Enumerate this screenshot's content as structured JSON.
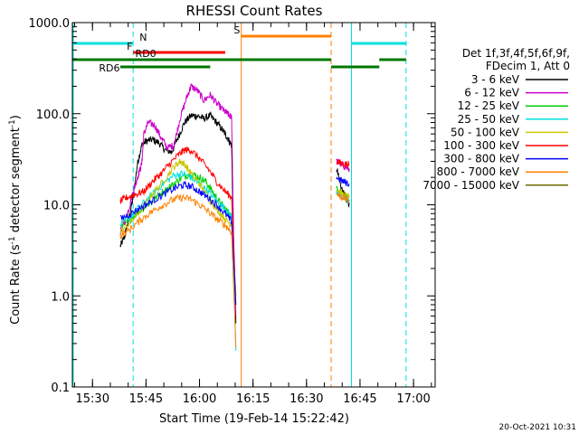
{
  "chart_data": {
    "type": "line",
    "title": "RHESSI Count Rates",
    "xlabel": "Start Time (19-Feb-14 15:22:42)",
    "ylabel_main": "Count Rate (s",
    "ylabel_sup": "-1",
    "ylabel_tail": " detector segment",
    "ylabel_sup2": "-1",
    "ylabel_close": ")",
    "xlim_min": [
      15.406,
      17.101
    ],
    "ylim": [
      0.1,
      1000
    ],
    "yscale": "log",
    "x_ticks": [
      {
        "min": 15.5,
        "label": "15:30"
      },
      {
        "min": 15.75,
        "label": "15:45"
      },
      {
        "min": 16.0,
        "label": "16:00"
      },
      {
        "min": 16.25,
        "label": "16:15"
      },
      {
        "min": 16.5,
        "label": "16:30"
      },
      {
        "min": 16.75,
        "label": "16:45"
      },
      {
        "min": 17.0,
        "label": "17:00"
      }
    ],
    "y_ticks": [
      {
        "v": 0.1,
        "label": "0.1"
      },
      {
        "v": 1,
        "label": "1.0"
      },
      {
        "v": 10,
        "label": "10.0"
      },
      {
        "v": 100,
        "label": "100.0"
      },
      {
        "v": 1000,
        "label": "1000.0"
      }
    ],
    "legend": {
      "placement": "right",
      "header1": "Det 1f,3f,4f,5f,6f,9f,",
      "header2": "FDecim 1, Att 0"
    },
    "series": [
      {
        "name": "3 - 6 keV",
        "color": "#000000",
        "x": [
          15.63,
          15.65,
          15.67,
          15.69,
          15.71,
          15.73,
          15.75,
          15.78,
          15.81,
          15.84,
          15.87,
          15.9,
          15.93,
          15.96,
          15.99,
          16.02,
          16.05,
          16.08,
          16.11,
          16.13,
          16.15,
          16.16,
          16.17
        ],
        "y": [
          3.5,
          4.5,
          7,
          12,
          28,
          45,
          50,
          52,
          48,
          40,
          38,
          55,
          80,
          95,
          95,
          88,
          95,
          80,
          65,
          55,
          45,
          3,
          0.5
        ],
        "x2": [
          16.64,
          16.66,
          16.68,
          16.7
        ],
        "y2": [
          25,
          16,
          12,
          10
        ]
      },
      {
        "name": "6 - 12 keV",
        "color": "#cc00cc",
        "x": [
          15.63,
          15.65,
          15.67,
          15.69,
          15.71,
          15.73,
          15.74,
          15.76,
          15.79,
          15.82,
          15.85,
          15.88,
          15.91,
          15.94,
          15.96,
          15.99,
          16.02,
          16.05,
          16.08,
          16.11,
          16.13,
          16.15,
          16.16,
          16.17
        ],
        "y": [
          5,
          6.5,
          9,
          14,
          20,
          28,
          60,
          80,
          75,
          55,
          42,
          45,
          90,
          150,
          200,
          180,
          140,
          160,
          130,
          110,
          100,
          90,
          4,
          0.6
        ],
        "x2": [
          16.64,
          16.66,
          16.68,
          16.7
        ],
        "y2": [
          30,
          28,
          26,
          25
        ]
      },
      {
        "name": "12 - 25 keV",
        "color": "#00cc00",
        "x": [
          15.63,
          15.68,
          15.73,
          15.78,
          15.83,
          15.88,
          15.92,
          15.96,
          16.0,
          16.03,
          16.06,
          16.09,
          16.12,
          16.15,
          16.17
        ],
        "y": [
          5.5,
          7,
          9,
          11,
          14,
          17,
          20,
          22,
          20,
          18,
          14,
          11,
          9,
          7.5,
          1
        ],
        "x2": [
          16.64,
          16.67,
          16.7
        ],
        "y2": [
          15,
          13,
          12
        ]
      },
      {
        "name": "25 - 50 keV",
        "color": "#00e0e0",
        "x": [
          15.63,
          15.68,
          15.73,
          15.78,
          15.83,
          15.88,
          15.92,
          15.96,
          16.0,
          16.04,
          16.08,
          16.12,
          16.15,
          16.17
        ],
        "y": [
          6,
          7.5,
          10,
          13,
          17,
          21,
          22,
          20,
          17,
          14,
          11,
          9,
          7.5,
          0.25
        ],
        "x2": [
          16.64,
          16.67,
          16.7
        ],
        "y2": [
          14,
          12,
          11
        ]
      },
      {
        "name": "50 - 100 keV",
        "color": "#c8c800",
        "x": [
          15.63,
          15.68,
          15.73,
          15.78,
          15.83,
          15.88,
          15.91,
          15.93,
          15.96,
          16.0,
          16.04,
          16.08,
          16.12,
          16.15,
          16.17
        ],
        "y": [
          5,
          6.5,
          9,
          13,
          18,
          26,
          30,
          28,
          22,
          17,
          12,
          9,
          7,
          6,
          1
        ],
        "x2": [
          16.64,
          16.67,
          16.7
        ],
        "y2": [
          15,
          13,
          12
        ]
      },
      {
        "name": "100 - 300 keV",
        "color": "#ff0000",
        "x": [
          15.63,
          15.66,
          15.7,
          15.74,
          15.78,
          15.82,
          15.86,
          15.9,
          15.93,
          15.96,
          16.0,
          16.04,
          16.08,
          16.12,
          16.15,
          16.17
        ],
        "y": [
          11,
          12,
          13,
          14,
          18,
          22,
          28,
          35,
          40,
          40,
          32,
          25,
          18,
          14,
          12,
          0.8
        ],
        "x2": [
          16.64,
          16.67,
          16.7
        ],
        "y2": [
          30,
          28,
          28
        ]
      },
      {
        "name": "300 - 800 keV",
        "color": "#0000ff",
        "x": [
          15.63,
          15.68,
          15.73,
          15.78,
          15.83,
          15.88,
          15.92,
          15.96,
          16.0,
          16.04,
          16.08,
          16.12,
          16.15,
          16.17
        ],
        "y": [
          7,
          8,
          9.5,
          11,
          13,
          15,
          16.5,
          16,
          14,
          12,
          10,
          8,
          6.5,
          0.8
        ],
        "x2": [
          16.64,
          16.67,
          16.7
        ],
        "y2": [
          20,
          18,
          17
        ]
      },
      {
        "name": "800 - 7000 keV",
        "color": "#ff8000",
        "x": [
          15.63,
          15.68,
          15.73,
          15.78,
          15.83,
          15.88,
          15.92,
          15.96,
          16.0,
          16.04,
          16.08,
          16.12,
          16.15,
          16.17
        ],
        "y": [
          4.5,
          5.5,
          7,
          8.5,
          10,
          11.5,
          12,
          11.5,
          10,
          8.5,
          7,
          6,
          5,
          0.27
        ],
        "x2": [
          16.64,
          16.67,
          16.7
        ],
        "y2": [
          13,
          12,
          11
        ]
      },
      {
        "name": "7000 - 15000 keV",
        "color": "#6b6b00",
        "x": [],
        "y": []
      }
    ],
    "vertical_lines": [
      {
        "min": 15.41,
        "color": "#00e0e0",
        "style": "solid"
      },
      {
        "min": 15.69,
        "color": "#00e0e0",
        "style": "dashed"
      },
      {
        "min": 16.195,
        "color": "#ff8000",
        "style": "solid"
      },
      {
        "min": 16.615,
        "color": "#ff8000",
        "style": "dashed"
      },
      {
        "min": 16.71,
        "color": "#00e0e0",
        "style": "solid"
      },
      {
        "min": 16.965,
        "color": "#00e0e0",
        "style": "dashed"
      }
    ],
    "flag_bars": [
      {
        "label": "N",
        "color": "#00e0e0",
        "level": 1,
        "segments": [
          [
            15.406,
            15.69
          ],
          [
            16.71,
            16.965
          ]
        ],
        "label_min": 15.72
      },
      {
        "label": "S",
        "color": "#ff8000",
        "level": 0,
        "segments": [
          [
            16.195,
            16.615
          ]
        ],
        "label_min": 16.16
      },
      {
        "label": "F",
        "color": "#ff0000",
        "level": 2,
        "segments": [
          [
            15.69,
            16.12
          ]
        ],
        "label_min": 15.66
      },
      {
        "label": "RD0",
        "color": "#007700",
        "level": 3,
        "segments": [
          [
            15.406,
            16.615
          ],
          [
            16.84,
            16.965
          ]
        ],
        "label_min": 15.7
      },
      {
        "label": "RD6",
        "color": "#007700",
        "level": 4,
        "segments": [
          [
            15.63,
            16.05
          ],
          [
            16.615,
            16.84
          ]
        ],
        "label_min": 15.53
      }
    ],
    "footer_timestamp": "20-Oct-2021 10:31"
  }
}
